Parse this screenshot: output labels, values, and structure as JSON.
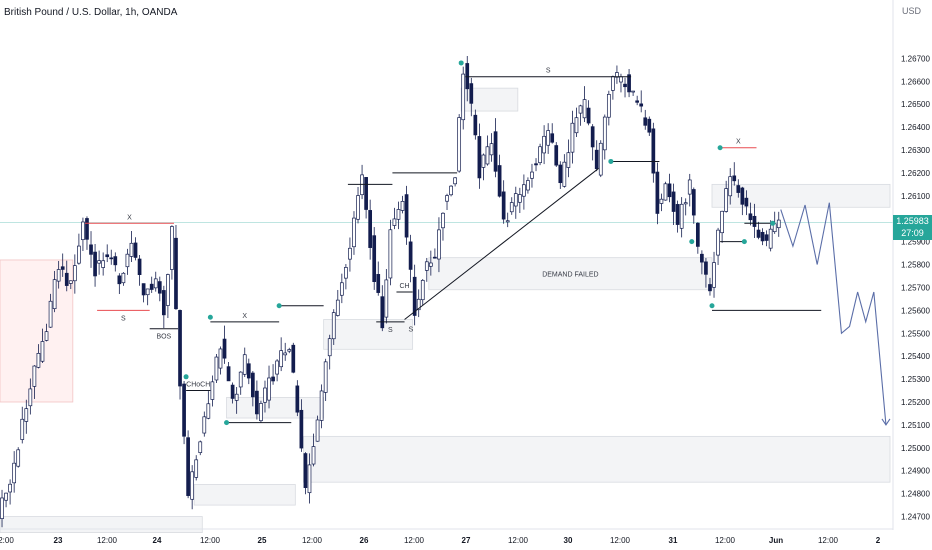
{
  "header": {
    "title": "British Pound / U.S. Dollar, 1h, OANDA",
    "unit": "USD"
  },
  "price_badge": {
    "price": "1.25983",
    "countdown": "27:09"
  },
  "colors": {
    "candle": "#131d4e",
    "last_price_line": "#26a69a",
    "marker": "#26a69a",
    "supply_line": "#e84b50",
    "projection": "#5b6ea8",
    "zone_fill": "#f3f4f6",
    "zone_stroke": "#d8dbe0",
    "left_zone_fill": "#fff1f1"
  },
  "chart_data": {
    "type": "candlestick",
    "title": "British Pound / U.S. Dollar, 1h, OANDA",
    "ylabel": "USD",
    "ylim": [
      1.2465,
      1.2685
    ],
    "y_ticks": [
      "1.26700",
      "1.26600",
      "1.26500",
      "1.26400",
      "1.26300",
      "1.26200",
      "1.26100",
      "1.25900",
      "1.25800",
      "1.25700",
      "1.25600",
      "1.25500",
      "1.25400",
      "1.25300",
      "1.25200",
      "1.25100",
      "1.25000",
      "1.24900",
      "1.24800",
      "1.24700"
    ],
    "x_ticks": [
      "2:00",
      "23",
      "12:00",
      "24",
      "12:00",
      "25",
      "12:00",
      "26",
      "12:00",
      "27",
      "12:00",
      "30",
      "12:00",
      "31",
      "12:00",
      "Jun",
      "12:00",
      "2"
    ],
    "grid": false,
    "last_price": 1.25983,
    "price_path": [
      [
        0,
        1.2471
      ],
      [
        3,
        1.2485
      ],
      [
        6,
        1.251
      ],
      [
        9,
        1.2535
      ],
      [
        12,
        1.2552
      ],
      [
        15,
        1.258
      ],
      [
        18,
        1.257
      ],
      [
        21,
        1.2598
      ],
      [
        24,
        1.2578
      ],
      [
        27,
        1.2585
      ],
      [
        30,
        1.2573
      ],
      [
        33,
        1.259
      ],
      [
        36,
        1.2566
      ],
      [
        39,
        1.2574
      ],
      [
        41,
        1.256
      ],
      [
        43,
        1.2594
      ],
      [
        45,
        1.2526
      ],
      [
        47,
        1.248
      ],
      [
        49,
        1.2495
      ],
      [
        52,
        1.2522
      ],
      [
        55,
        1.2545
      ],
      [
        58,
        1.252
      ],
      [
        61,
        1.2538
      ],
      [
        64,
        1.2514
      ],
      [
        67,
        1.2528
      ],
      [
        70,
        1.254
      ],
      [
        72,
        1.2545
      ],
      [
        74,
        1.2515
      ],
      [
        76,
        1.2482
      ],
      [
        78,
        1.25
      ],
      [
        81,
        1.254
      ],
      [
        84,
        1.2565
      ],
      [
        87,
        1.259
      ],
      [
        90,
        1.262
      ],
      [
        93,
        1.2575
      ],
      [
        95,
        1.2555
      ],
      [
        97,
        1.2595
      ],
      [
        100,
        1.261
      ],
      [
        103,
        1.2558
      ],
      [
        105,
        1.2575
      ],
      [
        108,
        1.2585
      ],
      [
        110,
        1.2605
      ],
      [
        113,
        1.262
      ],
      [
        115,
        1.2665
      ],
      [
        117,
        1.2648
      ],
      [
        119,
        1.262
      ],
      [
        122,
        1.2635
      ],
      [
        125,
        1.2598
      ],
      [
        127,
        1.2605
      ],
      [
        130,
        1.2615
      ],
      [
        133,
        1.2625
      ],
      [
        136,
        1.264
      ],
      [
        139,
        1.2615
      ],
      [
        142,
        1.264
      ],
      [
        145,
        1.265
      ],
      [
        148,
        1.262
      ],
      [
        150,
        1.2645
      ],
      [
        152,
        1.2662
      ],
      [
        155,
        1.266
      ],
      [
        158,
        1.265
      ],
      [
        161,
        1.264
      ],
      [
        163,
        1.2605
      ],
      [
        165,
        1.2615
      ],
      [
        168,
        1.2598
      ],
      [
        171,
        1.2615
      ],
      [
        173,
        1.2585
      ],
      [
        176,
        1.2568
      ],
      [
        178,
        1.2595
      ],
      [
        181,
        1.262
      ],
      [
        184,
        1.2608
      ],
      [
        187,
        1.2595
      ],
      [
        190,
        1.259
      ],
      [
        193,
        1.2598
      ]
    ],
    "projection": [
      [
        193,
        1.2604
      ],
      [
        196,
        1.2588
      ],
      [
        199,
        1.2606
      ],
      [
        202,
        1.258
      ],
      [
        205,
        1.2607
      ],
      [
        208,
        1.255
      ],
      [
        210,
        1.2553
      ],
      [
        212,
        1.2568
      ],
      [
        214,
        1.2555
      ],
      [
        216,
        1.2568
      ],
      [
        219,
        1.251
      ]
    ],
    "zones": [
      {
        "x0": 0,
        "x1": 18,
        "y0": 1.2582,
        "y1": 1.252,
        "label": "",
        "tone": "red"
      },
      {
        "x0": 80,
        "x1": 102,
        "y0": 1.2556,
        "y1": 1.2543,
        "label": ""
      },
      {
        "x0": 106,
        "x1": 176,
        "y0": 1.2583,
        "y1": 1.2569,
        "label": "DEMAND FAILED"
      },
      {
        "x0": 114,
        "x1": 128,
        "y0": 1.2657,
        "y1": 1.2647,
        "label": ""
      },
      {
        "x0": 176,
        "x1": 220,
        "y0": 1.2615,
        "y1": 1.2605,
        "label": ""
      },
      {
        "x0": 56,
        "x1": 80,
        "y0": 1.2522,
        "y1": 1.2513,
        "label": ""
      },
      {
        "x0": 75,
        "x1": 220,
        "y0": 1.2505,
        "y1": 1.2485,
        "label": ""
      },
      {
        "x0": 48,
        "x1": 73,
        "y0": 1.2484,
        "y1": 1.2475,
        "label": ""
      },
      {
        "x0": 0,
        "x1": 50,
        "y0": 1.247,
        "y1": 1.2463,
        "label": ""
      }
    ],
    "annotations": [
      {
        "type": "hline",
        "x0": 21,
        "x1": 43,
        "y": 1.2598,
        "color": "red",
        "label": "X",
        "label_pos": "above"
      },
      {
        "type": "hline",
        "x0": 24,
        "x1": 37,
        "y": 1.256,
        "color": "red",
        "label": "S",
        "label_pos": "below"
      },
      {
        "type": "hline",
        "x0": 37,
        "x1": 44,
        "y": 1.2552,
        "color": "dark",
        "label": "BOS",
        "label_pos": "below"
      },
      {
        "type": "hline",
        "x0": 52,
        "x1": 69,
        "y": 1.2555,
        "color": "dark",
        "label": "X",
        "label_pos": "above"
      },
      {
        "type": "hline",
        "x0": 69,
        "x1": 80,
        "y": 1.2562,
        "color": "dark",
        "label": "",
        "label_pos": "above"
      },
      {
        "type": "hline",
        "x0": 46,
        "x1": 52,
        "y": 1.2525,
        "color": "dark",
        "label": "CHoCH",
        "label_pos": "above"
      },
      {
        "type": "hline",
        "x0": 56,
        "x1": 72,
        "y": 1.2511,
        "color": "dark",
        "label": "",
        "label_pos": "above"
      },
      {
        "type": "hline",
        "x0": 86,
        "x1": 97,
        "y": 1.2615,
        "color": "dark",
        "label": "",
        "label_pos": "above"
      },
      {
        "type": "hline",
        "x0": 97,
        "x1": 113,
        "y": 1.262,
        "color": "dark",
        "label": "",
        "label_pos": "above"
      },
      {
        "type": "hline",
        "x0": 93,
        "x1": 100,
        "y": 1.2555,
        "color": "dark",
        "label": "S",
        "label_pos": "below"
      },
      {
        "type": "hline",
        "x0": 98,
        "x1": 102,
        "y": 1.2568,
        "color": "dark",
        "label": "CH",
        "label_pos": "above"
      },
      {
        "type": "hline",
        "x0": 115,
        "x1": 156,
        "y": 1.2662,
        "color": "dark",
        "label": "S",
        "label_pos": "above"
      },
      {
        "type": "hline",
        "x0": 151,
        "x1": 163,
        "y": 1.2625,
        "color": "dark",
        "label": "",
        "label_pos": "above"
      },
      {
        "type": "hline",
        "x0": 178,
        "x1": 187,
        "y": 1.2631,
        "color": "red",
        "label": "X",
        "label_pos": "above"
      },
      {
        "type": "hline",
        "x0": 178,
        "x1": 184,
        "y": 1.259,
        "color": "dark",
        "label": "",
        "label_pos": "above"
      },
      {
        "type": "hline",
        "x0": 184,
        "x1": 191,
        "y": 1.2598,
        "color": "dark",
        "label": "",
        "label_pos": "above"
      },
      {
        "type": "hline",
        "x0": 176,
        "x1": 203,
        "y": 1.256,
        "color": "dark",
        "label": "",
        "label_pos": "above"
      },
      {
        "type": "trend",
        "x0": 100,
        "y0": 1.2556,
        "x1": 148,
        "y1": 1.2622,
        "label": "S"
      }
    ],
    "markers": [
      [
        46,
        1.2531
      ],
      [
        52,
        1.2557
      ],
      [
        56,
        1.2511
      ],
      [
        69,
        1.2562
      ],
      [
        114,
        1.2668
      ],
      [
        151,
        1.2625
      ],
      [
        171,
        1.259
      ],
      [
        176,
        1.2562
      ],
      [
        178,
        1.2631
      ],
      [
        184,
        1.259
      ],
      [
        191,
        1.2598
      ]
    ]
  }
}
